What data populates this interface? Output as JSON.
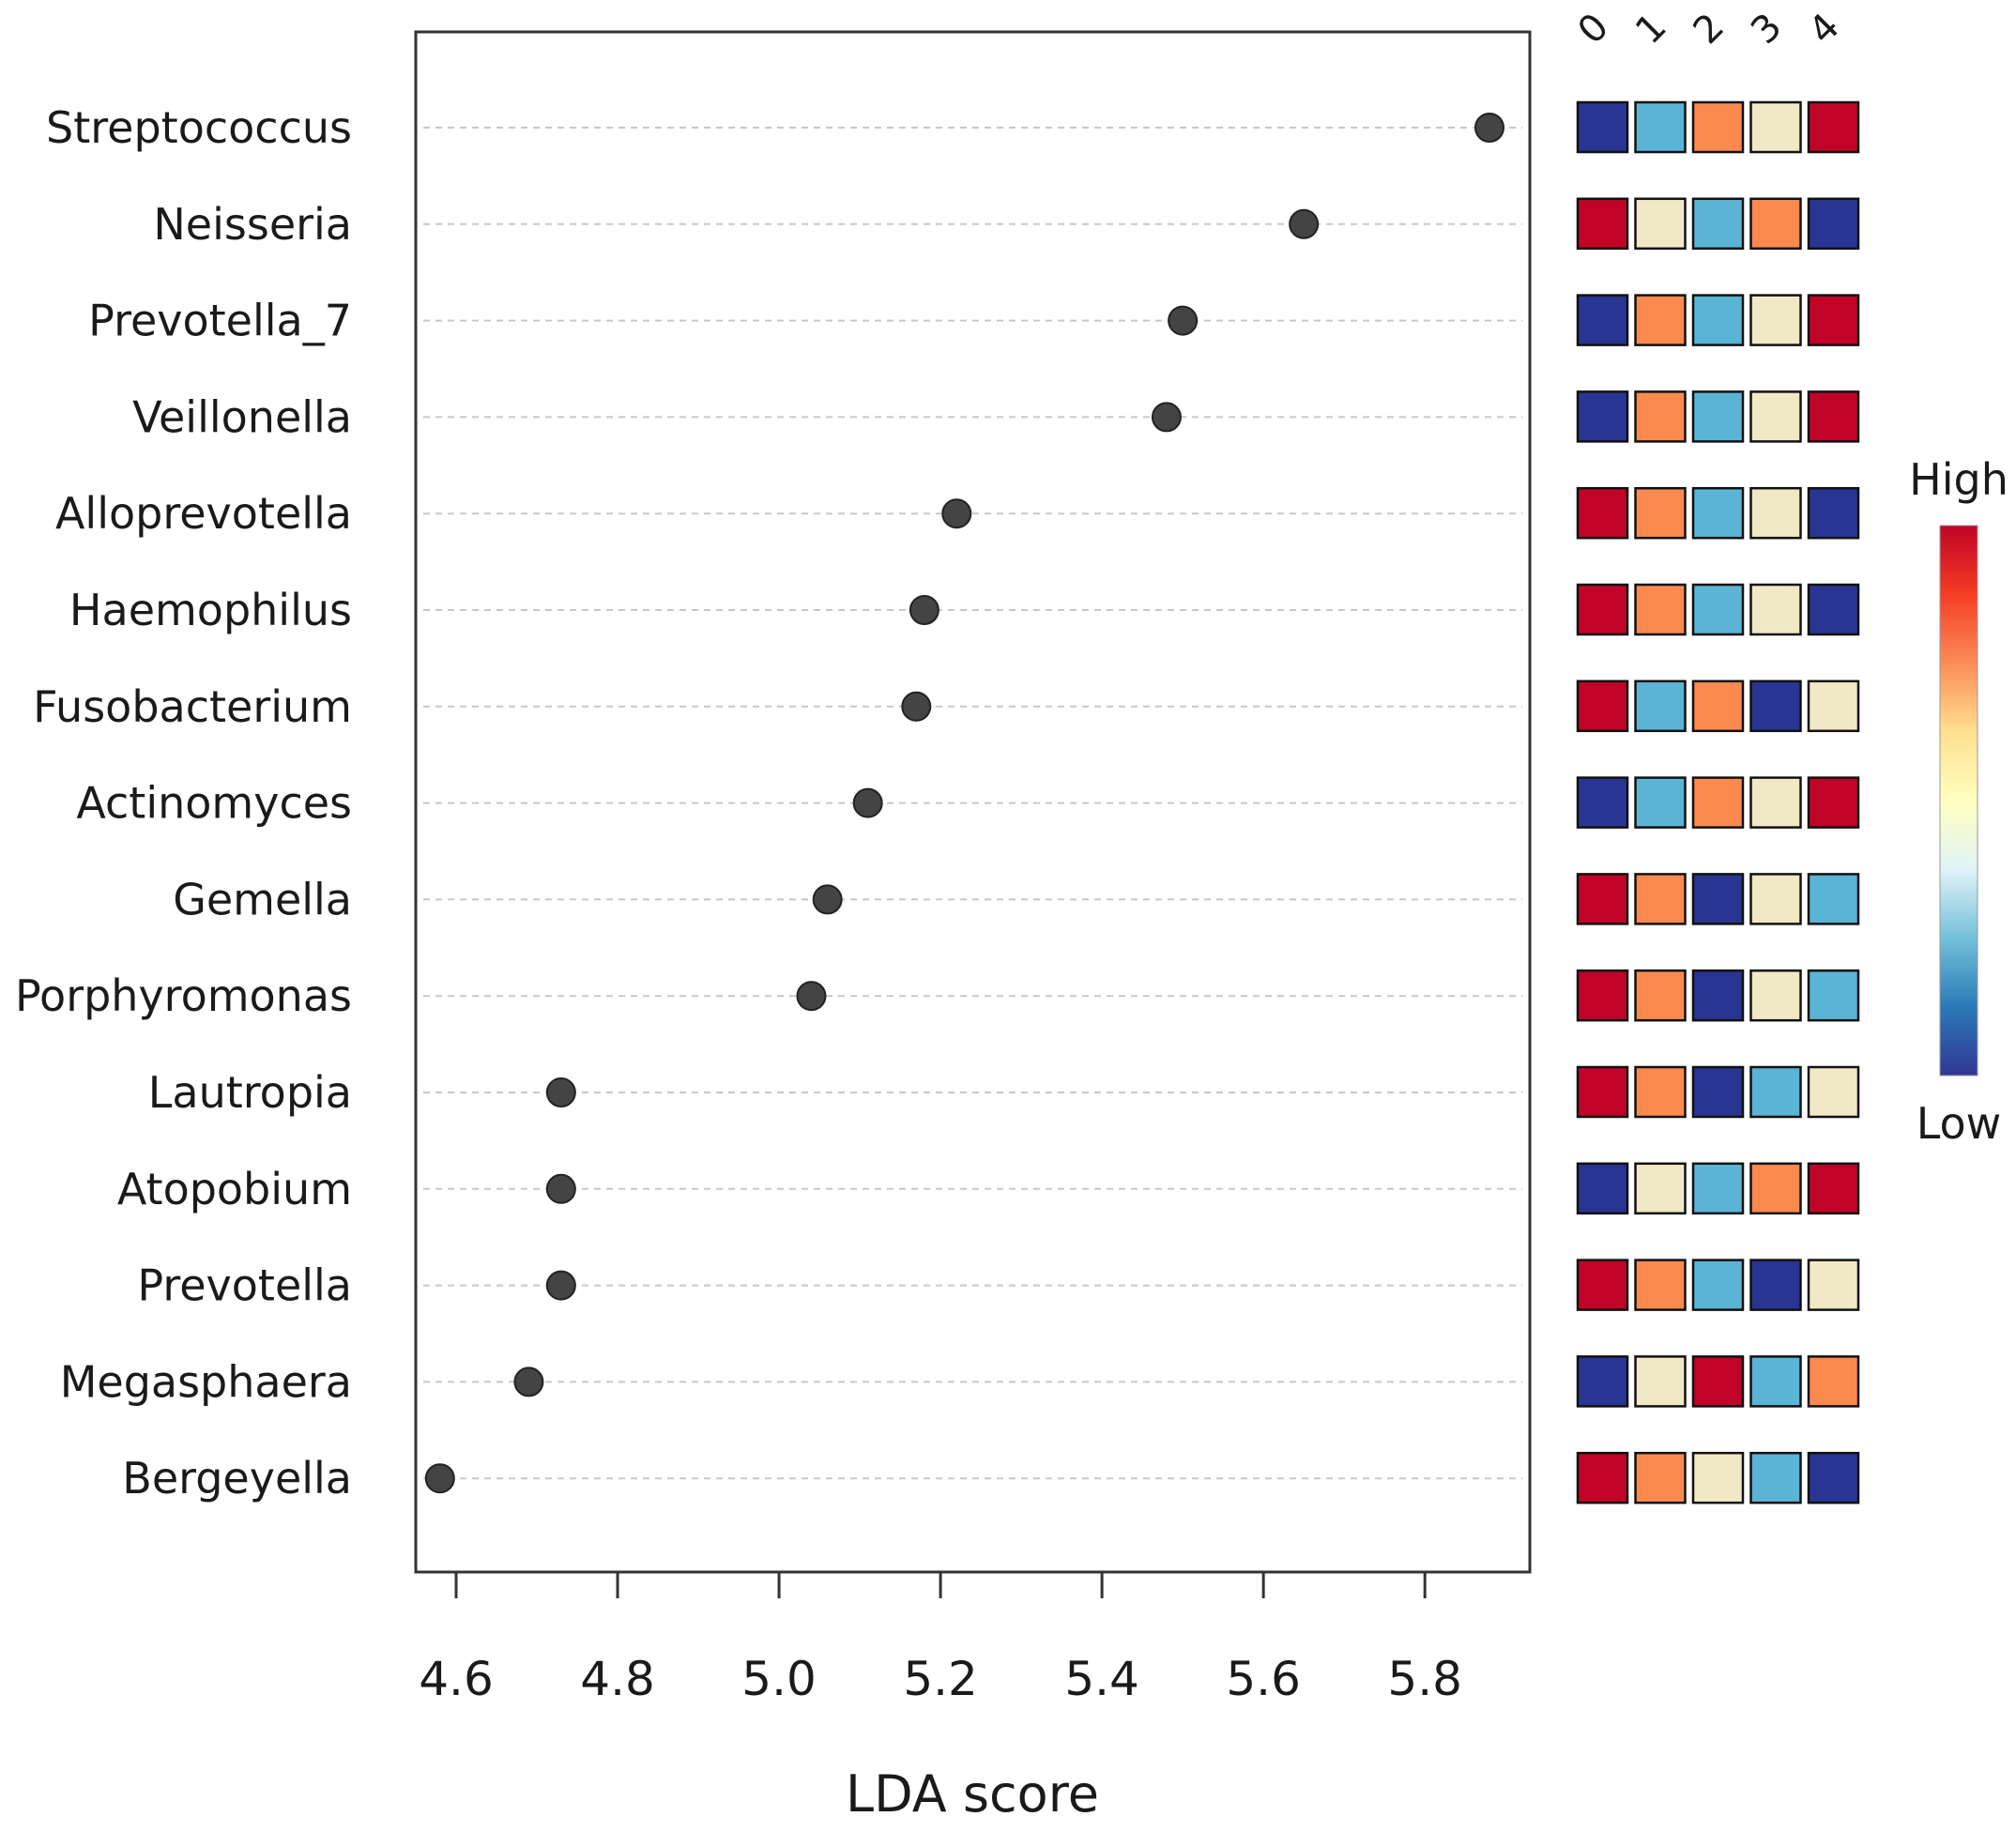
{
  "chart_data": {
    "type": "scatter",
    "xlabel": "LDA score",
    "xlim": [
      4.55,
      5.93
    ],
    "xticks": [
      4.6,
      4.8,
      5.0,
      5.2,
      5.4,
      5.6,
      5.8
    ],
    "xtick_labels": [
      "4.6",
      "4.8",
      "5.0",
      "5.2",
      "5.4",
      "5.6",
      "5.8"
    ],
    "grid": "horizontal dashed",
    "groups": [
      "0",
      "1",
      "2",
      "3",
      "4"
    ],
    "taxa": [
      "Streptococcus",
      "Neisseria",
      "Prevotella_7",
      "Veillonella",
      "Alloprevotella",
      "Haemophilus",
      "Fusobacterium",
      "Actinomyces",
      "Gemella",
      "Porphyromonas",
      "Lautropia",
      "Atopobium",
      "Prevotella",
      "Megasphaera",
      "Bergeyella"
    ],
    "lda_scores": [
      5.88,
      5.65,
      5.5,
      5.48,
      5.22,
      5.18,
      5.17,
      5.11,
      5.06,
      5.04,
      4.73,
      4.73,
      4.73,
      4.69,
      4.58
    ],
    "heatmap_colors": {
      "blue": "#283593",
      "lightblue": "#5ab4d6",
      "orange": "#fc8a4f",
      "cream": "#f1e8c5",
      "red": "#c00326"
    },
    "heatmap": [
      [
        "blue",
        "lightblue",
        "orange",
        "cream",
        "red"
      ],
      [
        "red",
        "cream",
        "lightblue",
        "orange",
        "blue"
      ],
      [
        "blue",
        "orange",
        "lightblue",
        "cream",
        "red"
      ],
      [
        "blue",
        "orange",
        "lightblue",
        "cream",
        "red"
      ],
      [
        "red",
        "orange",
        "lightblue",
        "cream",
        "blue"
      ],
      [
        "red",
        "orange",
        "lightblue",
        "cream",
        "blue"
      ],
      [
        "red",
        "lightblue",
        "orange",
        "blue",
        "cream"
      ],
      [
        "blue",
        "lightblue",
        "orange",
        "cream",
        "red"
      ],
      [
        "red",
        "orange",
        "blue",
        "cream",
        "lightblue"
      ],
      [
        "red",
        "orange",
        "blue",
        "cream",
        "lightblue"
      ],
      [
        "red",
        "orange",
        "blue",
        "lightblue",
        "cream"
      ],
      [
        "blue",
        "cream",
        "lightblue",
        "orange",
        "red"
      ],
      [
        "red",
        "orange",
        "lightblue",
        "blue",
        "cream"
      ],
      [
        "blue",
        "cream",
        "red",
        "lightblue",
        "orange"
      ],
      [
        "red",
        "orange",
        "cream",
        "lightblue",
        "blue"
      ]
    ],
    "legend": {
      "high_label": "High",
      "low_label": "Low",
      "gradient_colors": [
        "#c00326",
        "#f43d25",
        "#fc8d59",
        "#fee090",
        "#ffffbf",
        "#e0f3f8",
        "#74c0d9",
        "#2b7ab8",
        "#313695"
      ]
    }
  }
}
